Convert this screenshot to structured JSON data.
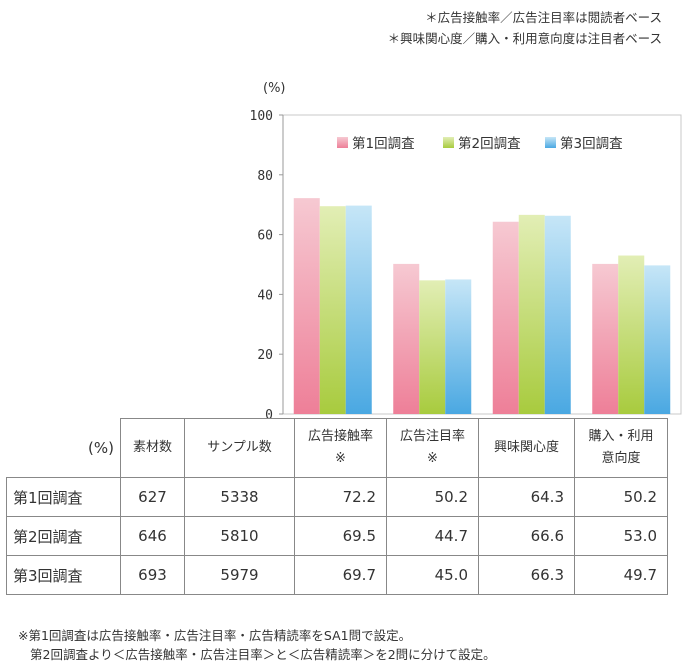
{
  "notes": {
    "top_1": "＊広告接触率／広告注目率は閲読者ベース",
    "top_2": "＊興味関心度／購入・利用意向度は注目者ベース"
  },
  "chart_data": {
    "type": "bar",
    "ylabel": "(%)",
    "ylim": [
      0,
      100
    ],
    "yticks": [
      0,
      20,
      40,
      60,
      80,
      100
    ],
    "grid": false,
    "legend_position": "top-right",
    "categories": [
      "広告接触率",
      "広告注目率",
      "興味関心度",
      "購入・利用意向度"
    ],
    "series": [
      {
        "name": "第1回調査",
        "values": [
          72.2,
          50.2,
          64.3,
          50.2
        ],
        "color_top": "#f6c9d2",
        "color_bottom": "#ee7f98"
      },
      {
        "name": "第2回調査",
        "values": [
          69.5,
          44.7,
          66.6,
          53.0
        ],
        "color_top": "#e2eeb5",
        "color_bottom": "#a8cb3e"
      },
      {
        "name": "第3回調査",
        "values": [
          69.7,
          45.0,
          66.3,
          49.7
        ],
        "color_top": "#c6e6f7",
        "color_bottom": "#4aa8e2"
      }
    ]
  },
  "table": {
    "corner": "(%)",
    "headers": [
      "素材数",
      "サンプル数",
      "広告接触率\n※",
      "広告注目率\n※",
      "興味関心度",
      "購入・利用\n意向度"
    ],
    "rows": [
      {
        "label": "第1回調査",
        "cells": [
          "627",
          "5338",
          "72.2",
          "50.2",
          "64.3",
          "50.2"
        ]
      },
      {
        "label": "第2回調査",
        "cells": [
          "646",
          "5810",
          "69.5",
          "44.7",
          "66.6",
          "53.0"
        ]
      },
      {
        "label": "第3回調査",
        "cells": [
          "693",
          "5979",
          "69.7",
          "45.0",
          "66.3",
          "49.7"
        ]
      }
    ]
  },
  "footnotes": {
    "line_1": "※第1回調査は広告接触率・広告注目率・広告精読率をSA1問で設定。",
    "line_2": "第2回調査より＜広告接触率・広告注目率＞と＜広告精読率＞を2問に分けて設定。"
  }
}
